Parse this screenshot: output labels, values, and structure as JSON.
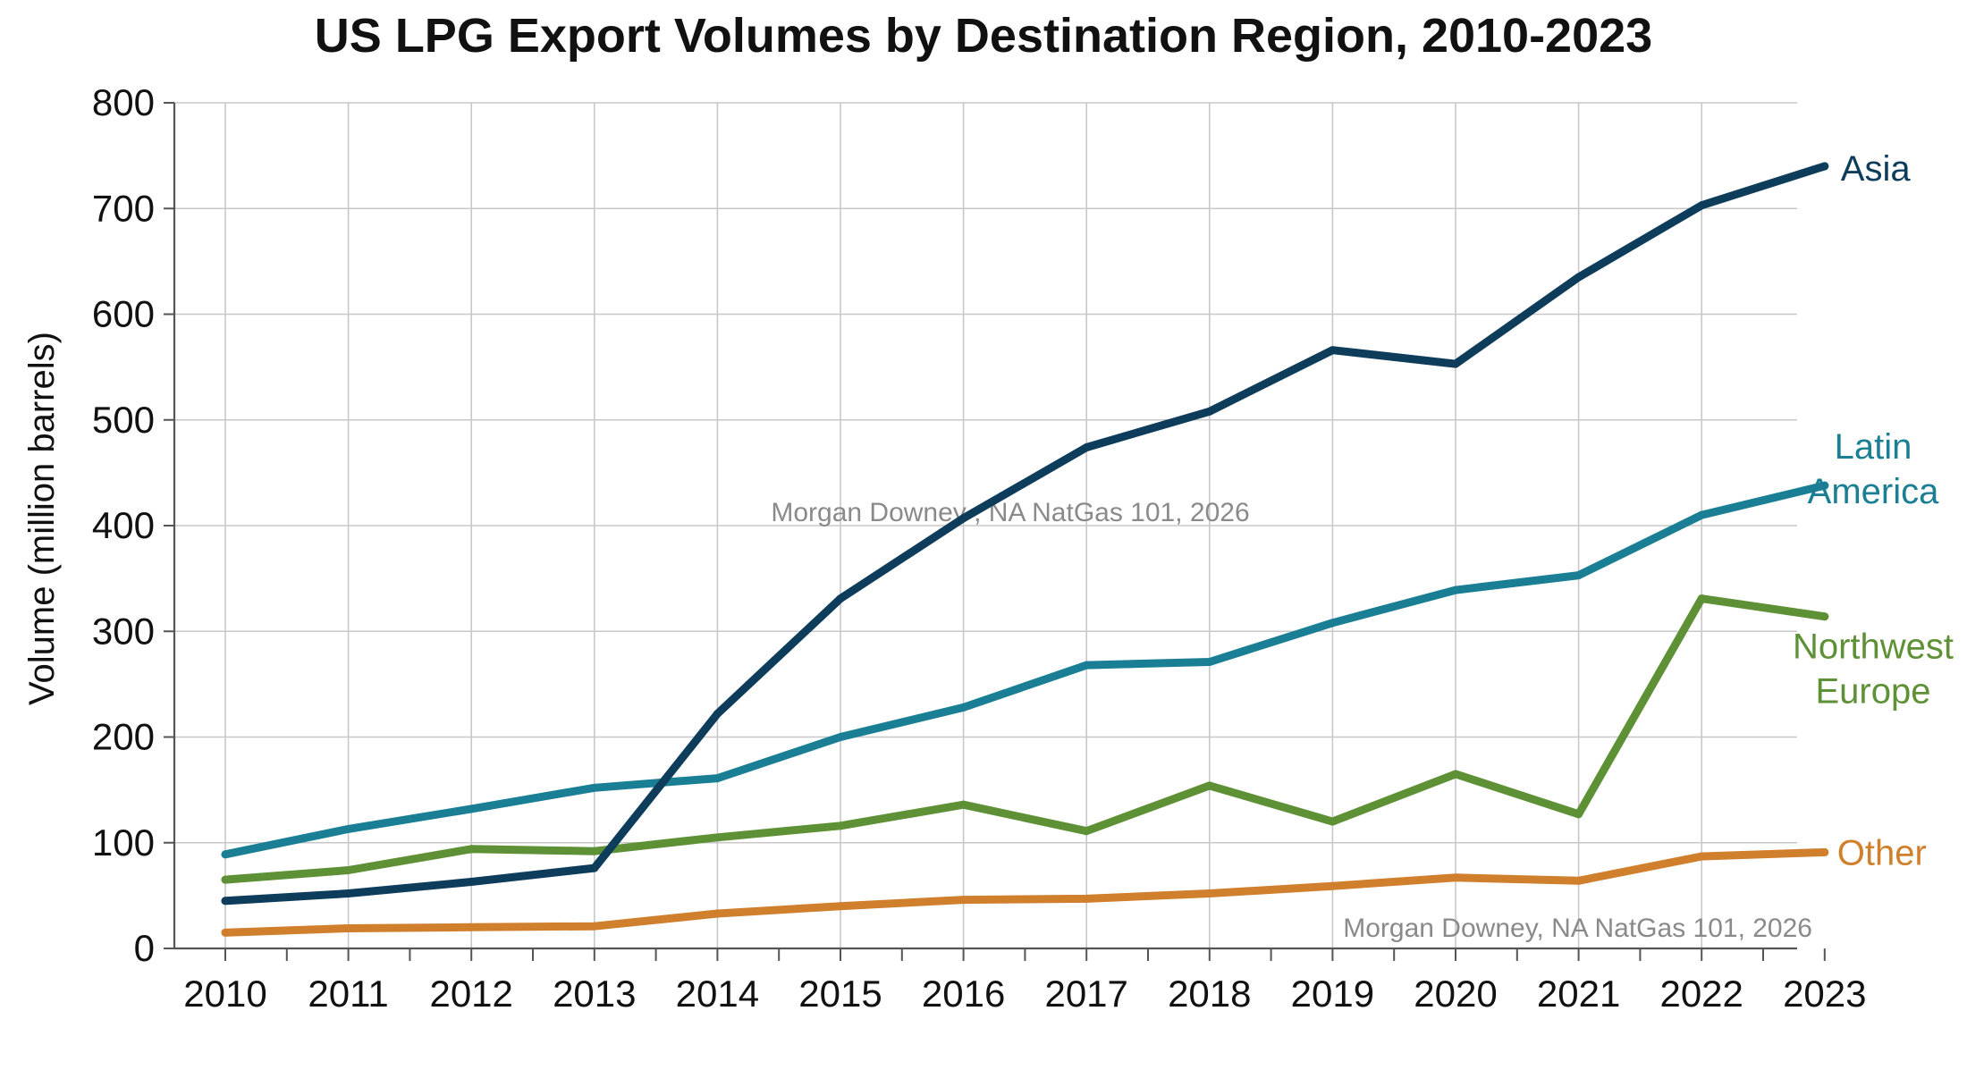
{
  "chart_data": {
    "type": "line",
    "title": "US LPG Export Volumes by Destination Region, 2010-2023",
    "xlabel": "",
    "ylabel": "Volume (million barrels)",
    "ylim": [
      0,
      800
    ],
    "y_ticks": [
      0,
      100,
      200,
      300,
      400,
      500,
      600,
      700,
      800
    ],
    "x": [
      2010,
      2011,
      2012,
      2013,
      2014,
      2015,
      2016,
      2017,
      2018,
      2019,
      2020,
      2021,
      2022,
      2023
    ],
    "x_tick_labels": [
      "2010",
      "2011",
      "2012",
      "2013",
      "2014",
      "2015",
      "2016",
      "2017",
      "2018",
      "2019",
      "2020",
      "2021",
      "2022",
      "2023"
    ],
    "grid": true,
    "legend": "direct labels at line ends",
    "series": [
      {
        "name": "Asia",
        "label_lines": [
          "Asia"
        ],
        "color": "#0e3d5c",
        "values": [
          45,
          52,
          63,
          76,
          222,
          331,
          407,
          474,
          508,
          566,
          553,
          635,
          703,
          740
        ]
      },
      {
        "name": "Latin America",
        "label_lines": [
          "Latin",
          "America"
        ],
        "color": "#1a7f94",
        "values": [
          89,
          113,
          132,
          152,
          161,
          200,
          228,
          268,
          271,
          308,
          339,
          353,
          410,
          438
        ]
      },
      {
        "name": "Northwest Europe",
        "label_lines": [
          "Northwest",
          "Europe"
        ],
        "color": "#5e9136",
        "values": [
          65,
          74,
          94,
          92,
          105,
          116,
          136,
          111,
          154,
          120,
          165,
          127,
          331,
          314
        ]
      },
      {
        "name": "Other",
        "label_lines": [
          "Other"
        ],
        "color": "#d07f2c",
        "values": [
          15,
          19,
          20,
          21,
          33,
          40,
          46,
          47,
          52,
          59,
          67,
          64,
          87,
          91
        ]
      }
    ],
    "annotations": [
      "Morgan Downey , NA NatGas 101, 2026",
      "Morgan Downey, NA NatGas 101, 2026"
    ]
  }
}
